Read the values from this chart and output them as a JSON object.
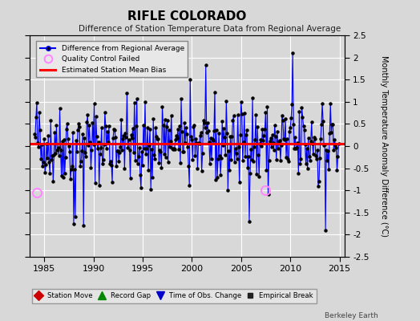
{
  "title": "RIFLE COLORADO",
  "subtitle": "Difference of Station Temperature Data from Regional Average",
  "ylabel": "Monthly Temperature Anomaly Difference (°C)",
  "ylim": [
    -2.5,
    2.5
  ],
  "xlim_start": 1983.5,
  "xlim_end": 2015.5,
  "bias_line": 0.05,
  "bias_color": "#ff0000",
  "line_color": "#0000ff",
  "dot_color": "#000000",
  "fill_color": "#aaaadd",
  "qc_color": "#ff88ff",
  "fig_background": "#d8d8d8",
  "plot_background": "#d8d8d8",
  "grid_color": "#ffffff",
  "watermark": "Berkeley Earth",
  "xticks": [
    1985,
    1990,
    1995,
    2000,
    2005,
    2010,
    2015
  ],
  "yticks": [
    -2.5,
    -2,
    -1.5,
    -1,
    -0.5,
    0,
    0.5,
    1,
    1.5,
    2,
    2.5
  ],
  "qc_failed_times": [
    1984.25,
    2007.5
  ],
  "qc_failed_values": [
    -1.05,
    -1.0
  ],
  "seed": 42
}
